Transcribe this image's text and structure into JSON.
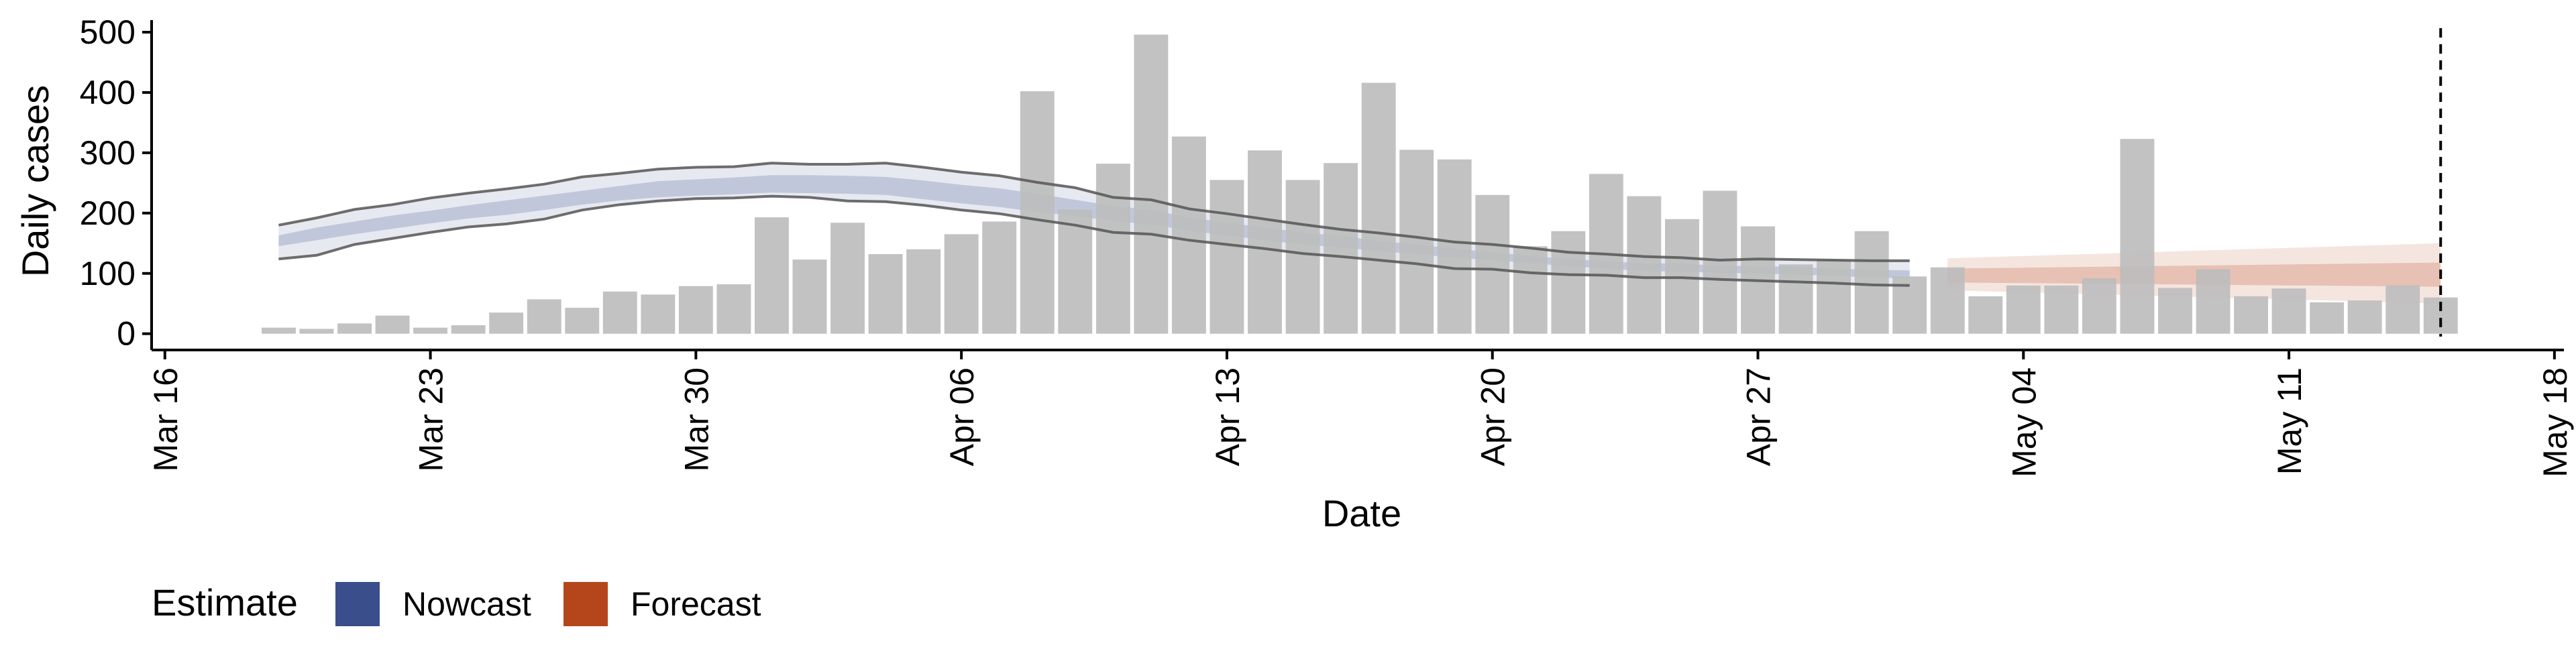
{
  "chart_data": {
    "type": "bar",
    "xlabel": "Date",
    "ylabel": "Daily cases",
    "ylim": [
      0,
      520
    ],
    "xlim": [
      "2020-03-16",
      "2020-05-18"
    ],
    "y_ticks": [
      0,
      100,
      200,
      300,
      400,
      500
    ],
    "x_ticks": [
      {
        "date": "2020-03-16",
        "label": "Mar 16"
      },
      {
        "date": "2020-03-23",
        "label": "Mar 23"
      },
      {
        "date": "2020-03-30",
        "label": "Mar 30"
      },
      {
        "date": "2020-04-06",
        "label": "Apr 06"
      },
      {
        "date": "2020-04-13",
        "label": "Apr 13"
      },
      {
        "date": "2020-04-20",
        "label": "Apr 20"
      },
      {
        "date": "2020-04-27",
        "label": "Apr 27"
      },
      {
        "date": "2020-05-04",
        "label": "May 04"
      },
      {
        "date": "2020-05-11",
        "label": "May 11"
      },
      {
        "date": "2020-05-18",
        "label": "May 18"
      }
    ],
    "reference_line": {
      "date": "2020-05-15",
      "style": "dashed"
    },
    "bars": {
      "dates": [
        "2020-03-19",
        "2020-03-20",
        "2020-03-21",
        "2020-03-22",
        "2020-03-23",
        "2020-03-24",
        "2020-03-25",
        "2020-03-26",
        "2020-03-27",
        "2020-03-28",
        "2020-03-29",
        "2020-03-30",
        "2020-03-31",
        "2020-04-01",
        "2020-04-02",
        "2020-04-03",
        "2020-04-04",
        "2020-04-05",
        "2020-04-06",
        "2020-04-07",
        "2020-04-08",
        "2020-04-09",
        "2020-04-10",
        "2020-04-11",
        "2020-04-12",
        "2020-04-13",
        "2020-04-14",
        "2020-04-15",
        "2020-04-16",
        "2020-04-17",
        "2020-04-18",
        "2020-04-19",
        "2020-04-20",
        "2020-04-21",
        "2020-04-22",
        "2020-04-23",
        "2020-04-24",
        "2020-04-25",
        "2020-04-26",
        "2020-04-27",
        "2020-04-28",
        "2020-04-29",
        "2020-04-30",
        "2020-05-01",
        "2020-05-02",
        "2020-05-03",
        "2020-05-04",
        "2020-05-05",
        "2020-05-06",
        "2020-05-07",
        "2020-05-08",
        "2020-05-09",
        "2020-05-10",
        "2020-05-11",
        "2020-05-12",
        "2020-05-13",
        "2020-05-14",
        "2020-05-15"
      ],
      "values": [
        10,
        8,
        17,
        30,
        10,
        14,
        35,
        57,
        43,
        70,
        65,
        79,
        82,
        193,
        123,
        184,
        132,
        140,
        165,
        186,
        402,
        206,
        282,
        496,
        327,
        255,
        304,
        255,
        283,
        416,
        305,
        289,
        230,
        145,
        170,
        265,
        228,
        190,
        237,
        178,
        115,
        123,
        170,
        95,
        110,
        62,
        80,
        80,
        92,
        323,
        76,
        107,
        62,
        75,
        52,
        55,
        80,
        60
      ],
      "color": "#bdbdbd"
    },
    "series": [
      {
        "name": "Nowcast",
        "color": "#3b4e8c",
        "dates": [
          "2020-03-19",
          "2020-03-20",
          "2020-03-21",
          "2020-03-22",
          "2020-03-23",
          "2020-03-24",
          "2020-03-25",
          "2020-03-26",
          "2020-03-27",
          "2020-03-28",
          "2020-03-29",
          "2020-03-30",
          "2020-03-31",
          "2020-04-01",
          "2020-04-02",
          "2020-04-03",
          "2020-04-04",
          "2020-04-05",
          "2020-04-06",
          "2020-04-07",
          "2020-04-08",
          "2020-04-09",
          "2020-04-10",
          "2020-04-11",
          "2020-04-12",
          "2020-04-13",
          "2020-04-14",
          "2020-04-15",
          "2020-04-16",
          "2020-04-17",
          "2020-04-18",
          "2020-04-19",
          "2020-04-20",
          "2020-04-21",
          "2020-04-22",
          "2020-04-23",
          "2020-04-24",
          "2020-04-25",
          "2020-04-26",
          "2020-04-27",
          "2020-04-28",
          "2020-04-29",
          "2020-04-30",
          "2020-05-01"
        ],
        "upper90": [
          180,
          192,
          206,
          214,
          225,
          233,
          240,
          248,
          260,
          266,
          273,
          276,
          277,
          283,
          281,
          281,
          283,
          276,
          268,
          262,
          251,
          242,
          226,
          222,
          207,
          199,
          190,
          181,
          173,
          167,
          160,
          152,
          148,
          142,
          135,
          132,
          128,
          126,
          122,
          124,
          123,
          122,
          121,
          121
        ],
        "upper50": [
          163,
          176,
          186,
          196,
          204,
          213,
          221,
          229,
          237,
          245,
          253,
          256,
          259,
          263,
          263,
          262,
          260,
          254,
          247,
          241,
          232,
          222,
          212,
          205,
          193,
          184,
          176,
          168,
          162,
          154,
          148,
          141,
          135,
          129,
          124,
          120,
          117,
          116,
          113,
          112,
          111,
          108,
          106,
          105
        ],
        "lower50": [
          145,
          155,
          165,
          174,
          183,
          191,
          197,
          205,
          214,
          221,
          226,
          229,
          231,
          234,
          233,
          232,
          230,
          223,
          216,
          210,
          202,
          195,
          187,
          181,
          171,
          163,
          155,
          148,
          143,
          137,
          132,
          126,
          122,
          117,
          112,
          108,
          104,
          103,
          101,
          100,
          98,
          96,
          93,
          92
        ],
        "lower90": [
          124,
          130,
          148,
          158,
          168,
          177,
          182,
          190,
          205,
          214,
          220,
          224,
          225,
          228,
          226,
          220,
          219,
          213,
          205,
          199,
          189,
          180,
          168,
          165,
          155,
          148,
          141,
          133,
          128,
          122,
          116,
          108,
          107,
          101,
          98,
          97,
          93,
          93,
          90,
          88,
          86,
          84,
          81,
          80
        ]
      },
      {
        "name": "Forecast",
        "color": "#b5461c",
        "dates": [
          "2020-05-02",
          "2020-05-15"
        ],
        "upper90": [
          125,
          150
        ],
        "upper50": [
          108,
          118
        ],
        "lower50": [
          85,
          78
        ],
        "lower90": [
          72,
          50
        ]
      }
    ],
    "legend": {
      "title": "Estimate",
      "position": "bottom-left",
      "items": [
        {
          "label": "Nowcast",
          "color": "#3b4e8c"
        },
        {
          "label": "Forecast",
          "color": "#b5461c"
        }
      ]
    }
  }
}
